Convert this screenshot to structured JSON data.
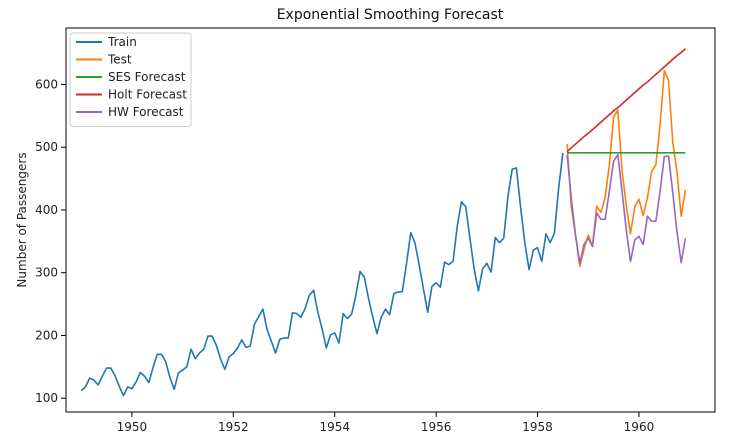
{
  "chart_data": {
    "type": "line",
    "title": "Exponential Smoothing Forecast",
    "xlabel": "",
    "ylabel": "Number of Passengers",
    "xlim": [
      1948.7,
      1961.5
    ],
    "ylim": [
      78,
      690
    ],
    "x_ticks": [
      1950,
      1952,
      1954,
      1956,
      1958,
      1960
    ],
    "y_ticks": [
      100,
      200,
      300,
      400,
      500,
      600
    ],
    "grid": false,
    "legend_position": "top-left",
    "series": [
      {
        "name": "Train",
        "color": "#1f77b4",
        "start": 1949.0,
        "step": 0.0833333,
        "values": [
          112,
          118,
          132,
          129,
          121,
          135,
          148,
          148,
          136,
          119,
          104,
          118,
          115,
          126,
          141,
          135,
          125,
          149,
          170,
          170,
          158,
          133,
          114,
          140,
          145,
          150,
          178,
          163,
          172,
          178,
          199,
          199,
          184,
          162,
          146,
          166,
          171,
          180,
          193,
          181,
          183,
          218,
          230,
          242,
          209,
          191,
          172,
          194,
          196,
          196,
          236,
          235,
          229,
          243,
          264,
          272,
          237,
          211,
          180,
          201,
          204,
          188,
          235,
          227,
          234,
          264,
          302,
          293,
          259,
          229,
          203,
          229,
          242,
          233,
          267,
          269,
          270,
          315,
          364,
          347,
          312,
          274,
          237,
          278,
          284,
          277,
          317,
          313,
          318,
          374,
          413,
          405,
          355,
          306,
          271,
          306,
          315,
          301,
          356,
          348,
          355,
          422,
          465,
          467,
          404,
          347,
          305,
          336,
          340,
          318,
          362,
          348,
          363,
          435,
          491
        ]
      },
      {
        "name": "Test",
        "color": "#ff7f0e",
        "start": 1958.5833,
        "step": 0.0833333,
        "values": [
          505,
          404,
          359,
          310,
          337,
          360,
          342,
          406,
          396,
          420,
          472,
          548,
          559,
          463,
          407,
          362,
          405,
          417,
          391,
          419,
          461,
          472,
          535,
          622,
          606,
          508,
          461,
          390,
          432
        ]
      },
      {
        "name": "SES Forecast",
        "color": "#2ca02c",
        "start": 1958.5833,
        "step": 0.0833333,
        "values": [
          491,
          491,
          491,
          491,
          491,
          491,
          491,
          491,
          491,
          491,
          491,
          491,
          491,
          491,
          491,
          491,
          491,
          491,
          491,
          491,
          491,
          491,
          491,
          491,
          491,
          491,
          491,
          491,
          491
        ]
      },
      {
        "name": "Holt Forecast",
        "color": "#d62728",
        "start": 1958.5833,
        "step": 0.0833333,
        "values": [
          493,
          499,
          505,
          511,
          517,
          522,
          528,
          534,
          540,
          546,
          552,
          558,
          563,
          569,
          575,
          581,
          587,
          593,
          599,
          604,
          610,
          616,
          622,
          628,
          634,
          640,
          646,
          651,
          657
        ]
      },
      {
        "name": "HW Forecast",
        "color": "#9467bd",
        "start": 1958.5833,
        "step": 0.0833333,
        "values": [
          488,
          418,
          360,
          315,
          345,
          355,
          342,
          395,
          385,
          385,
          430,
          478,
          488,
          430,
          368,
          318,
          352,
          358,
          345,
          390,
          382,
          382,
          430,
          485,
          486,
          428,
          365,
          316,
          355
        ]
      }
    ]
  }
}
